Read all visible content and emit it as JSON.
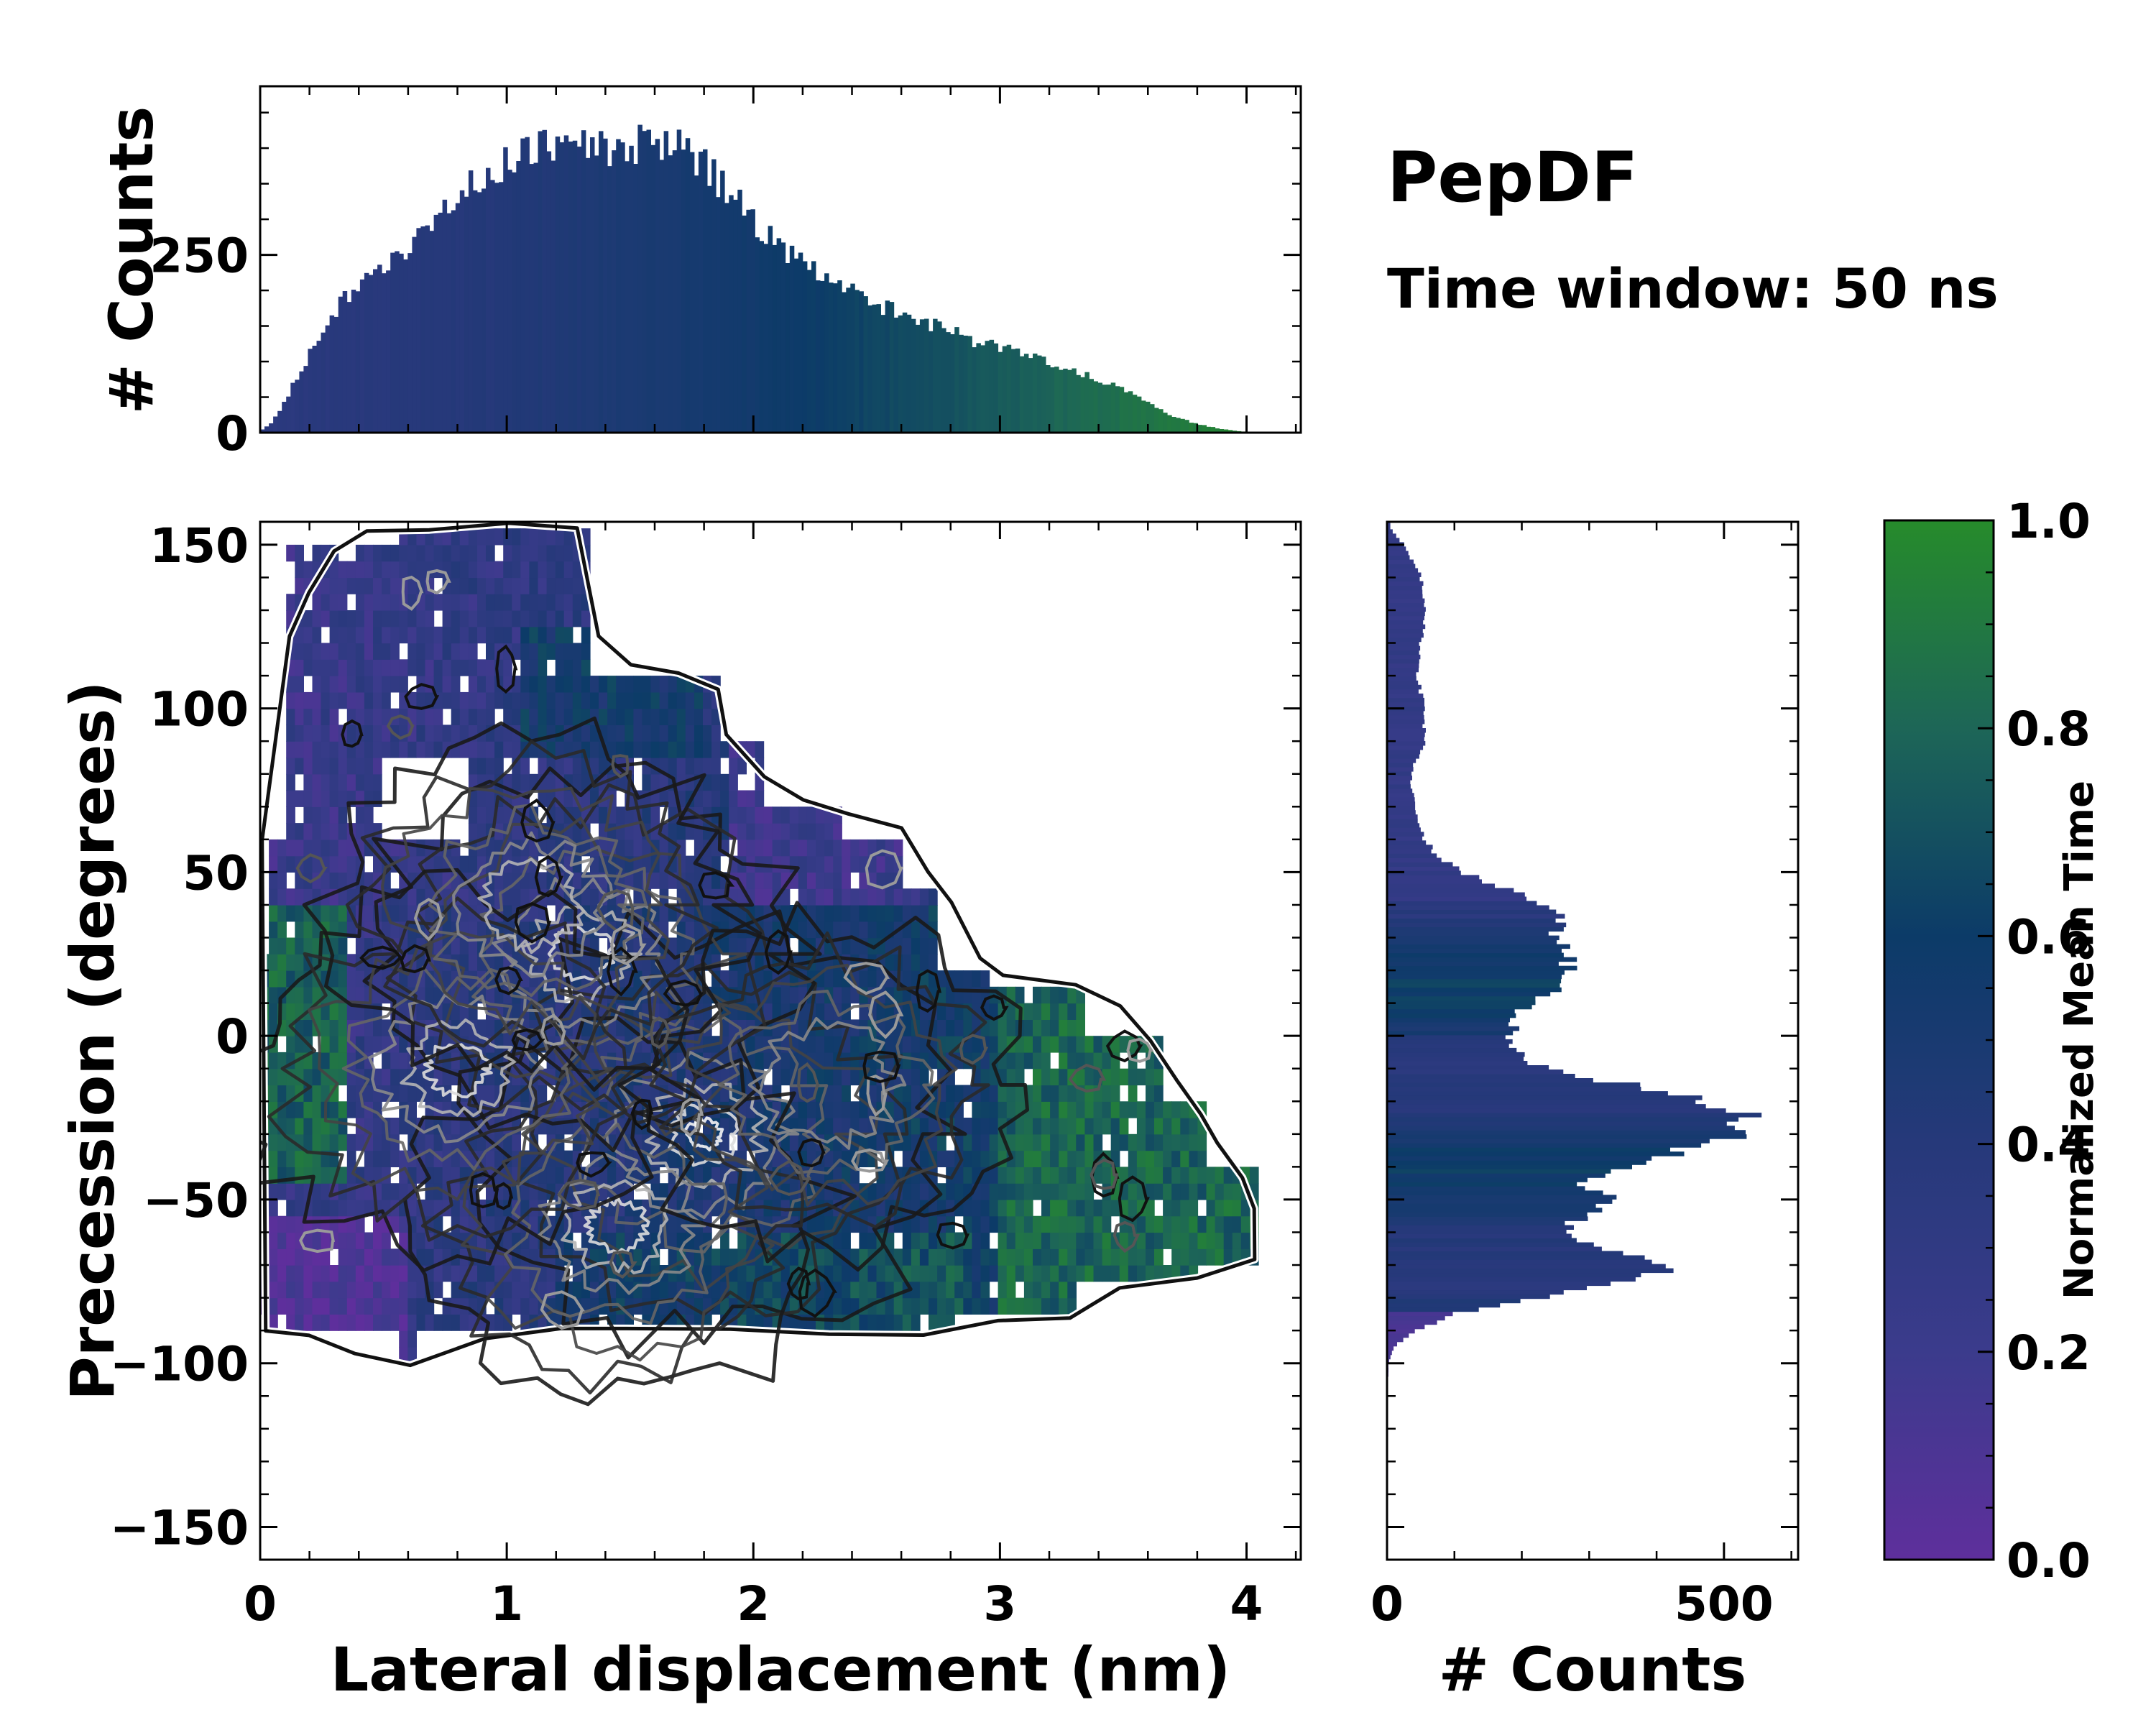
{
  "chart_data": {
    "type": "joint-histogram",
    "title": "PepDF",
    "subtitle": "Time window: 50 ns",
    "main": {
      "type": "heatmap",
      "xlabel": "Lateral displacement (nm)",
      "ylabel": "Precession (degrees)",
      "xlim": [
        0,
        4.22
      ],
      "ylim": [
        -160,
        157
      ],
      "xticks": [
        0,
        1,
        2,
        3,
        4
      ],
      "xtick_labels": [
        "0",
        "1",
        "2",
        "3",
        "4"
      ],
      "yticks": [
        -150,
        -100,
        -50,
        0,
        50,
        100,
        150
      ],
      "ytick_labels": [
        "−150",
        "−100",
        "−50",
        "0",
        "50",
        "100",
        "150"
      ],
      "color_field": "Normalized Mean Time",
      "density_peaks": [
        {
          "x": 1.8,
          "y": -30,
          "level": 1.0
        },
        {
          "x": 1.45,
          "y": -58,
          "level": 0.7
        },
        {
          "x": 1.3,
          "y": 25,
          "level": 0.8
        },
        {
          "x": 0.8,
          "y": -10,
          "level": 0.75
        },
        {
          "x": 1.1,
          "y": 40,
          "level": 0.6
        },
        {
          "x": 2.3,
          "y": -15,
          "level": 0.5
        }
      ]
    },
    "top_histogram": {
      "type": "bar",
      "ylabel": "# Counts",
      "yticks": [
        0,
        250
      ],
      "ytick_labels": [
        "0",
        "250"
      ],
      "ylim": [
        0,
        487
      ],
      "x_range": [
        0,
        4.22
      ],
      "profile_x": [
        0,
        0.05,
        0.1,
        0.2,
        0.3,
        0.4,
        0.5,
        0.6,
        0.7,
        0.8,
        0.9,
        1.0,
        1.1,
        1.2,
        1.3,
        1.4,
        1.5,
        1.6,
        1.7,
        1.8,
        1.9,
        2.0,
        2.1,
        2.2,
        2.3,
        2.4,
        2.5,
        2.6,
        2.7,
        2.8,
        2.9,
        3.0,
        3.1,
        3.2,
        3.3,
        3.4,
        3.5,
        3.6,
        3.7,
        3.8,
        3.9,
        4.0,
        4.1
      ],
      "profile_counts": [
        2,
        15,
        45,
        110,
        170,
        215,
        240,
        262,
        295,
        330,
        360,
        378,
        395,
        412,
        406,
        398,
        402,
        410,
        405,
        375,
        340,
        300,
        262,
        235,
        215,
        198,
        180,
        170,
        155,
        145,
        128,
        120,
        110,
        100,
        88,
        75,
        62,
        42,
        24,
        12,
        5,
        1,
        0
      ]
    },
    "right_histogram": {
      "type": "barh",
      "xlabel": "# Counts",
      "xticks": [
        0,
        500
      ],
      "xtick_labels": [
        "0",
        "500"
      ],
      "xlim": [
        0,
        610
      ],
      "profile_y": [
        -100,
        -95,
        -90,
        -85,
        -80,
        -75,
        -70,
        -65,
        -60,
        -55,
        -50,
        -45,
        -40,
        -35,
        -30,
        -25,
        -20,
        -15,
        -10,
        -5,
        0,
        5,
        10,
        15,
        20,
        25,
        30,
        35,
        40,
        45,
        50,
        55,
        60,
        70,
        80,
        90,
        100,
        110,
        120,
        130,
        140,
        150,
        155
      ],
      "profile_counts": [
        2,
        10,
        40,
        100,
        220,
        370,
        420,
        330,
        250,
        290,
        330,
        290,
        350,
        440,
        520,
        545,
        470,
        360,
        235,
        195,
        185,
        190,
        210,
        255,
        270,
        270,
        255,
        255,
        240,
        175,
        110,
        75,
        55,
        40,
        35,
        55,
        55,
        45,
        50,
        60,
        50,
        25,
        5
      ]
    },
    "colorbar": {
      "label": "Normalized Mean Time",
      "range": [
        0.0,
        1.0
      ],
      "ticks": [
        0.0,
        0.2,
        0.4,
        0.6,
        0.8,
        1.0
      ],
      "tick_labels": [
        "0.0",
        "0.2",
        "0.4",
        "0.6",
        "0.8",
        "1.0"
      ],
      "stops": [
        "#5e2f9c",
        "#3b3b8c",
        "#26397a",
        "#0c3b68",
        "#1d6657",
        "#268b2b"
      ]
    }
  }
}
